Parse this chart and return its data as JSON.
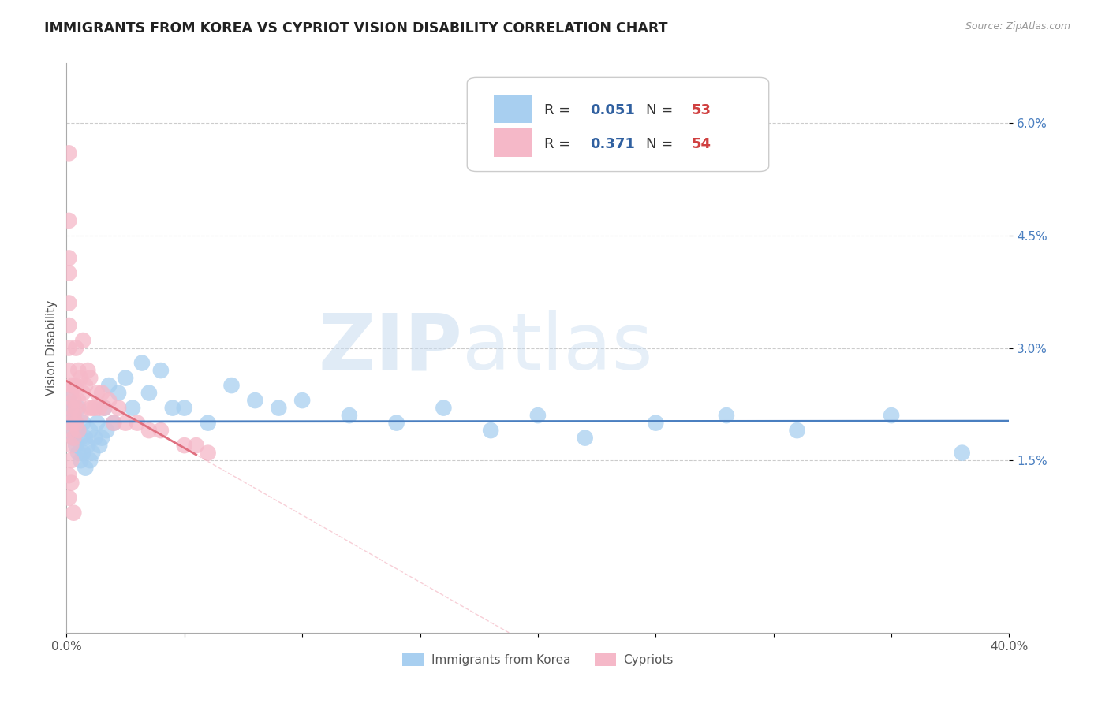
{
  "title": "IMMIGRANTS FROM KOREA VS CYPRIOT VISION DISABILITY CORRELATION CHART",
  "source_text": "Source: ZipAtlas.com",
  "ylabel": "Vision Disability",
  "watermark_zip": "ZIP",
  "watermark_atlas": "atlas",
  "xlim": [
    0.0,
    0.4
  ],
  "ylim": [
    -0.008,
    0.068
  ],
  "xticks": [
    0.0,
    0.05,
    0.1,
    0.15,
    0.2,
    0.25,
    0.3,
    0.35,
    0.4
  ],
  "ytick_positions": [
    0.015,
    0.03,
    0.045,
    0.06
  ],
  "ytick_labels": [
    "1.5%",
    "3.0%",
    "4.5%",
    "6.0%"
  ],
  "blue_color": "#A8CFF0",
  "pink_color": "#F5B8C8",
  "blue_line_color": "#4A7FC0",
  "pink_line_color": "#E07080",
  "pink_dash_color": "#F0A0B0",
  "legend_r_color": "#3060A0",
  "legend_n_color": "#D04040",
  "blue_R": 0.051,
  "blue_N": 53,
  "pink_R": 0.371,
  "pink_N": 54,
  "blue_scatter_x": [
    0.001,
    0.001,
    0.002,
    0.002,
    0.003,
    0.003,
    0.004,
    0.004,
    0.005,
    0.005,
    0.005,
    0.006,
    0.006,
    0.007,
    0.007,
    0.008,
    0.008,
    0.009,
    0.01,
    0.01,
    0.011,
    0.012,
    0.013,
    0.014,
    0.015,
    0.016,
    0.017,
    0.018,
    0.02,
    0.022,
    0.025,
    0.028,
    0.032,
    0.035,
    0.04,
    0.045,
    0.05,
    0.06,
    0.07,
    0.08,
    0.09,
    0.1,
    0.12,
    0.14,
    0.16,
    0.18,
    0.2,
    0.22,
    0.25,
    0.28,
    0.31,
    0.35,
    0.38
  ],
  "blue_scatter_y": [
    0.02,
    0.023,
    0.019,
    0.022,
    0.018,
    0.021,
    0.017,
    0.02,
    0.016,
    0.019,
    0.022,
    0.015,
    0.018,
    0.016,
    0.02,
    0.014,
    0.018,
    0.017,
    0.015,
    0.019,
    0.016,
    0.018,
    0.02,
    0.017,
    0.018,
    0.022,
    0.019,
    0.025,
    0.02,
    0.024,
    0.026,
    0.022,
    0.028,
    0.024,
    0.027,
    0.022,
    0.022,
    0.02,
    0.025,
    0.023,
    0.022,
    0.023,
    0.021,
    0.02,
    0.022,
    0.019,
    0.021,
    0.018,
    0.02,
    0.021,
    0.019,
    0.021,
    0.016
  ],
  "pink_scatter_x": [
    0.001,
    0.001,
    0.001,
    0.001,
    0.001,
    0.001,
    0.001,
    0.001,
    0.002,
    0.002,
    0.002,
    0.002,
    0.002,
    0.002,
    0.002,
    0.003,
    0.003,
    0.003,
    0.003,
    0.004,
    0.004,
    0.004,
    0.004,
    0.005,
    0.005,
    0.005,
    0.006,
    0.006,
    0.007,
    0.007,
    0.008,
    0.009,
    0.01,
    0.01,
    0.011,
    0.012,
    0.013,
    0.014,
    0.015,
    0.016,
    0.018,
    0.02,
    0.022,
    0.025,
    0.03,
    0.035,
    0.04,
    0.05,
    0.055,
    0.06,
    0.001,
    0.001,
    0.002,
    0.003
  ],
  "pink_scatter_y": [
    0.056,
    0.047,
    0.042,
    0.04,
    0.036,
    0.033,
    0.03,
    0.027,
    0.025,
    0.024,
    0.022,
    0.02,
    0.019,
    0.017,
    0.015,
    0.018,
    0.021,
    0.025,
    0.023,
    0.02,
    0.022,
    0.025,
    0.03,
    0.019,
    0.023,
    0.027,
    0.021,
    0.026,
    0.024,
    0.031,
    0.025,
    0.027,
    0.022,
    0.026,
    0.022,
    0.022,
    0.024,
    0.022,
    0.024,
    0.022,
    0.023,
    0.02,
    0.022,
    0.02,
    0.02,
    0.019,
    0.019,
    0.017,
    0.017,
    0.016,
    0.013,
    0.01,
    0.012,
    0.008
  ],
  "background_color": "#FFFFFF",
  "grid_color": "#CCCCCC",
  "title_fontsize": 12.5,
  "tick_fontsize": 11,
  "legend_fontsize": 13
}
